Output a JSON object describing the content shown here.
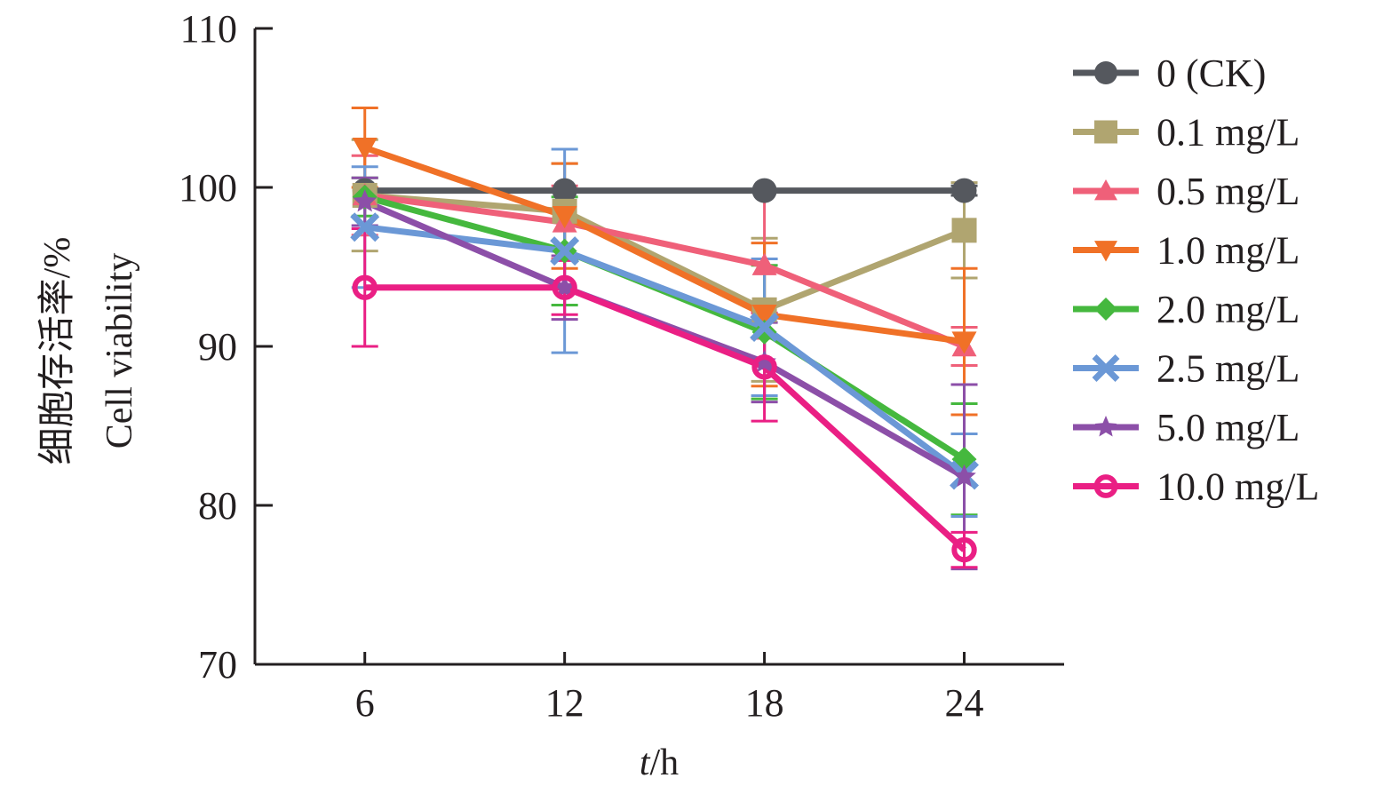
{
  "chart_data": {
    "type": "line",
    "title": "",
    "xlabel_italic": "t",
    "xlabel_rest": "/h",
    "ylabel_line1": "细胞存活率/%",
    "ylabel_line2": "Cell viability",
    "x": [
      6,
      12,
      18,
      24
    ],
    "x_tick_labels": [
      "6",
      "12",
      "18",
      "24"
    ],
    "xlim": [
      2.7,
      27.0
    ],
    "ylim": [
      70,
      110
    ],
    "y_ticks": [
      70,
      80,
      90,
      100,
      110
    ],
    "y_tick_labels": [
      "70",
      "80",
      "90",
      "100",
      "110"
    ],
    "grid": false,
    "legend_position": "right",
    "series": [
      {
        "name": "0 (CK)",
        "color": "#55585e",
        "marker": "circle",
        "values": [
          99.8,
          99.8,
          99.8,
          99.8
        ],
        "errors": [
          0,
          0,
          0,
          0.3
        ]
      },
      {
        "name": "0.1 mg/L",
        "color": "#b0a570",
        "marker": "square",
        "values": [
          99.5,
          98.5,
          92.3,
          97.3
        ],
        "errors": [
          3.5,
          3.0,
          4.5,
          3.0
        ]
      },
      {
        "name": "0.5 mg/L",
        "color": "#ef6079",
        "marker": "triangle-up",
        "values": [
          99.5,
          97.8,
          95.1,
          90.0
        ],
        "errors": [
          2.5,
          2.3,
          4.6,
          1.2
        ]
      },
      {
        "name": "1.0 mg/L",
        "color": "#f07127",
        "marker": "triangle-down",
        "values": [
          102.5,
          98.2,
          92.0,
          90.3
        ],
        "errors": [
          2.5,
          3.3,
          4.5,
          4.6
        ]
      },
      {
        "name": "2.0 mg/L",
        "color": "#45b83e",
        "marker": "diamond",
        "values": [
          99.4,
          96.0,
          90.9,
          82.9
        ],
        "errors": [
          1.2,
          3.4,
          4.2,
          3.5
        ]
      },
      {
        "name": "2.5 mg/L",
        "color": "#6b98d6",
        "marker": "x",
        "values": [
          97.5,
          96.0,
          91.2,
          81.9
        ],
        "errors": [
          3.8,
          6.4,
          4.3,
          2.6
        ]
      },
      {
        "name": "5.0 mg/L",
        "color": "#8c4fa8",
        "marker": "star",
        "values": [
          99.1,
          93.7,
          89.0,
          81.8
        ],
        "errors": [
          1.5,
          2.0,
          2.5,
          5.8
        ]
      },
      {
        "name": "10.0 mg/L",
        "color": "#ea1f84",
        "marker": "circle-open",
        "values": [
          93.7,
          93.7,
          88.7,
          77.2
        ],
        "errors": [
          3.7,
          1.7,
          3.4,
          1.1
        ]
      }
    ]
  }
}
